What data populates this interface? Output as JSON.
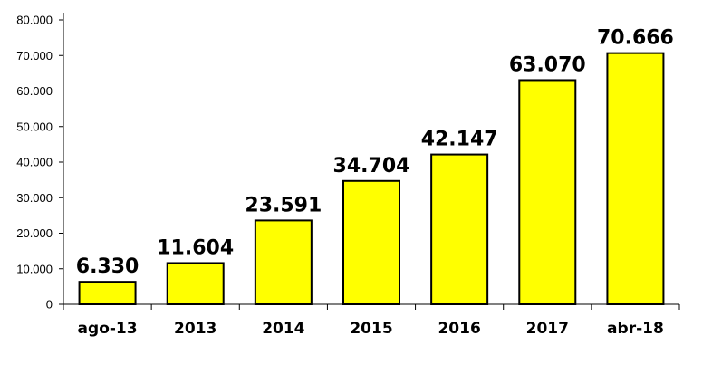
{
  "chart_data": {
    "type": "bar",
    "categories": [
      "ago-13",
      "2013",
      "2014",
      "2015",
      "2016",
      "2017",
      "abr-18"
    ],
    "values": [
      6330,
      11604,
      23591,
      34704,
      42147,
      63070,
      70666
    ],
    "value_labels": [
      "6.330",
      "11.604",
      "23.591",
      "34.704",
      "42.147",
      "63.070",
      "70.666"
    ],
    "yticks": [
      0,
      10000,
      20000,
      30000,
      40000,
      50000,
      60000,
      70000,
      80000
    ],
    "ytick_labels": [
      "0",
      "10.000",
      "20.000",
      "30.000",
      "40.000",
      "50.000",
      "60.000",
      "70.000",
      "80.000"
    ],
    "ylim": [
      0,
      80000
    ],
    "title": "",
    "xlabel": "",
    "ylabel": "",
    "grid": false,
    "legend": "none",
    "bar_color": "#FFFF00",
    "bar_border_color": "#000000"
  }
}
